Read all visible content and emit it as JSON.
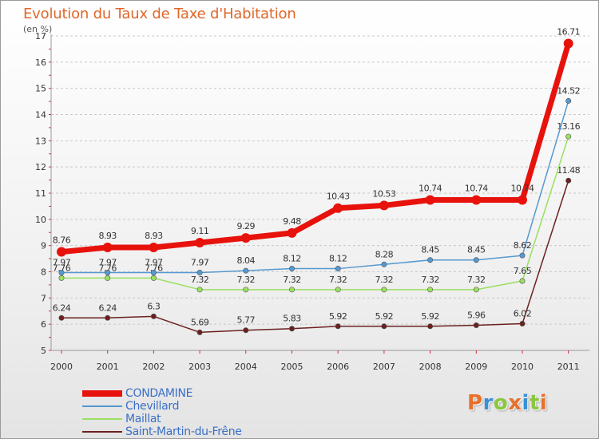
{
  "chart_data": {
    "type": "line",
    "title": "Evolution du Taux de Taxe d'Habitation",
    "ylabel": "(en %)",
    "xlabel": "",
    "x": [
      "2000",
      "2001",
      "2002",
      "2003",
      "2004",
      "2005",
      "2006",
      "2007",
      "2008",
      "2009",
      "2010",
      "2011"
    ],
    "ylim": [
      5,
      17
    ],
    "yticks": [
      5,
      6,
      7,
      8,
      9,
      10,
      11,
      12,
      13,
      14,
      15,
      16,
      17
    ],
    "grid": "horizontal-dashed",
    "legend_position": "bottom-left",
    "series": [
      {
        "name": "CONDAMINE",
        "color": "#e8120c",
        "emphasis": true,
        "values": [
          8.76,
          8.93,
          8.93,
          9.11,
          9.29,
          9.48,
          10.43,
          10.53,
          10.74,
          10.74,
          10.74,
          16.71
        ],
        "labels": [
          "8.76",
          "8.93",
          "8.93",
          "9.11",
          "9.29",
          "9.48",
          "10.43",
          "10.53",
          "10.74",
          "10.74",
          "10.74",
          "16.71"
        ]
      },
      {
        "name": "Chevillard",
        "color": "#5599d0",
        "values": [
          7.97,
          7.97,
          7.97,
          7.97,
          8.04,
          8.12,
          8.12,
          8.28,
          8.45,
          8.45,
          8.62,
          14.52
        ],
        "labels": [
          "7.97",
          "7.97",
          "7.97",
          "7.97",
          "8.04",
          "8.12",
          "8.12",
          "8.28",
          "8.45",
          "8.45",
          "8.62",
          "14.52"
        ]
      },
      {
        "name": "Maillat",
        "color": "#99e060",
        "values": [
          7.76,
          7.76,
          7.76,
          7.32,
          7.32,
          7.32,
          7.32,
          7.32,
          7.32,
          7.32,
          7.65,
          13.16
        ],
        "labels": [
          "7.76",
          "7.76",
          "7.76",
          "7.32",
          "7.32",
          "7.32",
          "7.32",
          "7.32",
          "7.32",
          "7.32",
          "7.65",
          "13.16"
        ]
      },
      {
        "name": "Saint-Martin-du-Frêne",
        "color": "#6b2020",
        "values": [
          6.24,
          6.24,
          6.3,
          5.69,
          5.77,
          5.83,
          5.92,
          5.92,
          5.92,
          5.96,
          6.02,
          11.48
        ],
        "labels": [
          "6.24",
          "6.24",
          "6.3",
          "5.69",
          "5.77",
          "5.83",
          "5.92",
          "5.92",
          "5.92",
          "5.96",
          "6.02",
          "11.48"
        ]
      }
    ]
  },
  "logo": {
    "text": "Proxiti",
    "letters": [
      {
        "ch": "P",
        "color": "#e8702a"
      },
      {
        "ch": "r",
        "color": "#3b8fd6"
      },
      {
        "ch": "o",
        "color": "#8cc63f"
      },
      {
        "ch": "x",
        "color": "#e8702a"
      },
      {
        "ch": "i",
        "color": "#3b8fd6"
      },
      {
        "ch": "t",
        "color": "#8cc63f"
      },
      {
        "ch": "i",
        "color": "#e8702a"
      }
    ]
  }
}
